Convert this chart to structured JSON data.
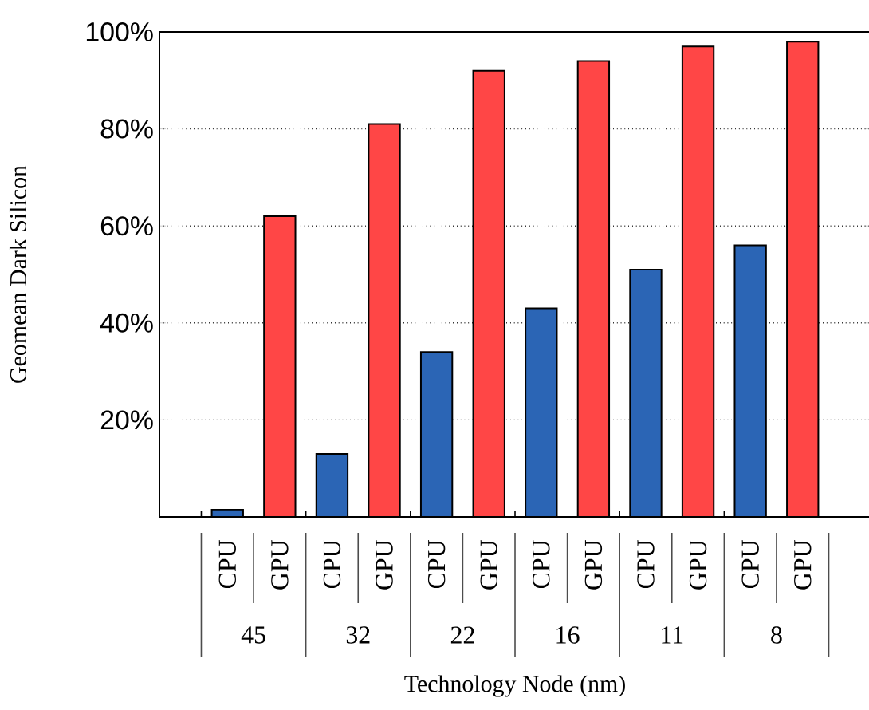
{
  "chart_data": {
    "type": "bar",
    "xlabel": "Technology Node (nm)",
    "ylabel": "Geomean Dark Silicon",
    "categories": [
      "45",
      "32",
      "22",
      "16",
      "11",
      "8"
    ],
    "series": [
      {
        "name": "CPU",
        "color": "#2b65b5",
        "values": [
          1.5,
          13,
          34,
          43,
          51,
          56
        ]
      },
      {
        "name": "GPU",
        "color": "#ff4646",
        "values": [
          62,
          81,
          92,
          94,
          97,
          98
        ]
      }
    ],
    "ylim": [
      0,
      100
    ],
    "yticks": [
      {
        "value": 20,
        "label": "20%"
      },
      {
        "value": 40,
        "label": "40%"
      },
      {
        "value": 60,
        "label": "60%"
      },
      {
        "value": 80,
        "label": "80%"
      },
      {
        "value": 100,
        "label": "100%"
      }
    ],
    "grid": "y",
    "legend": "bottom"
  }
}
